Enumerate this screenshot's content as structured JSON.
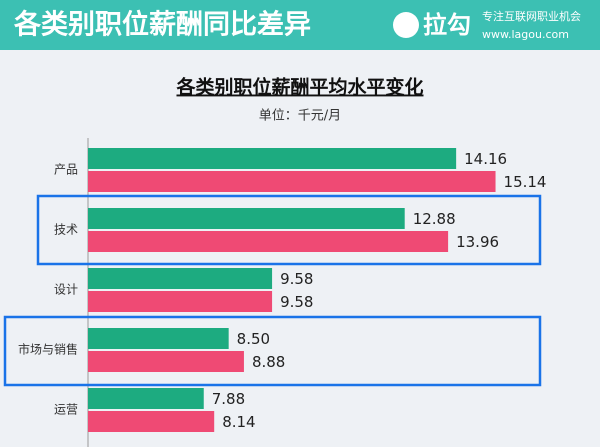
{
  "header": {
    "title": "各类别职位薪酬同比差异",
    "logo": "拉勾",
    "slogan": "专注互联网职业机会",
    "url": "www.lagou.com"
  },
  "chart_data": {
    "type": "bar",
    "orientation": "horizontal",
    "title": "各类别职位薪酬平均水平变化",
    "subtitle": "单位：千元/月",
    "categories": [
      "产品",
      "技术",
      "设计",
      "市场与销售",
      "运营"
    ],
    "series": [
      {
        "color": "#1dab80",
        "values": [
          14.16,
          12.88,
          9.58,
          8.5,
          7.88
        ],
        "value_labels": [
          "14.16",
          "12.88",
          "9.58",
          "8.50",
          "7.88"
        ]
      },
      {
        "color": "#ef4a74",
        "values": [
          15.14,
          13.96,
          9.58,
          8.88,
          8.14
        ]
      }
    ],
    "xlim": [
      5,
      15.5
    ]
  }
}
